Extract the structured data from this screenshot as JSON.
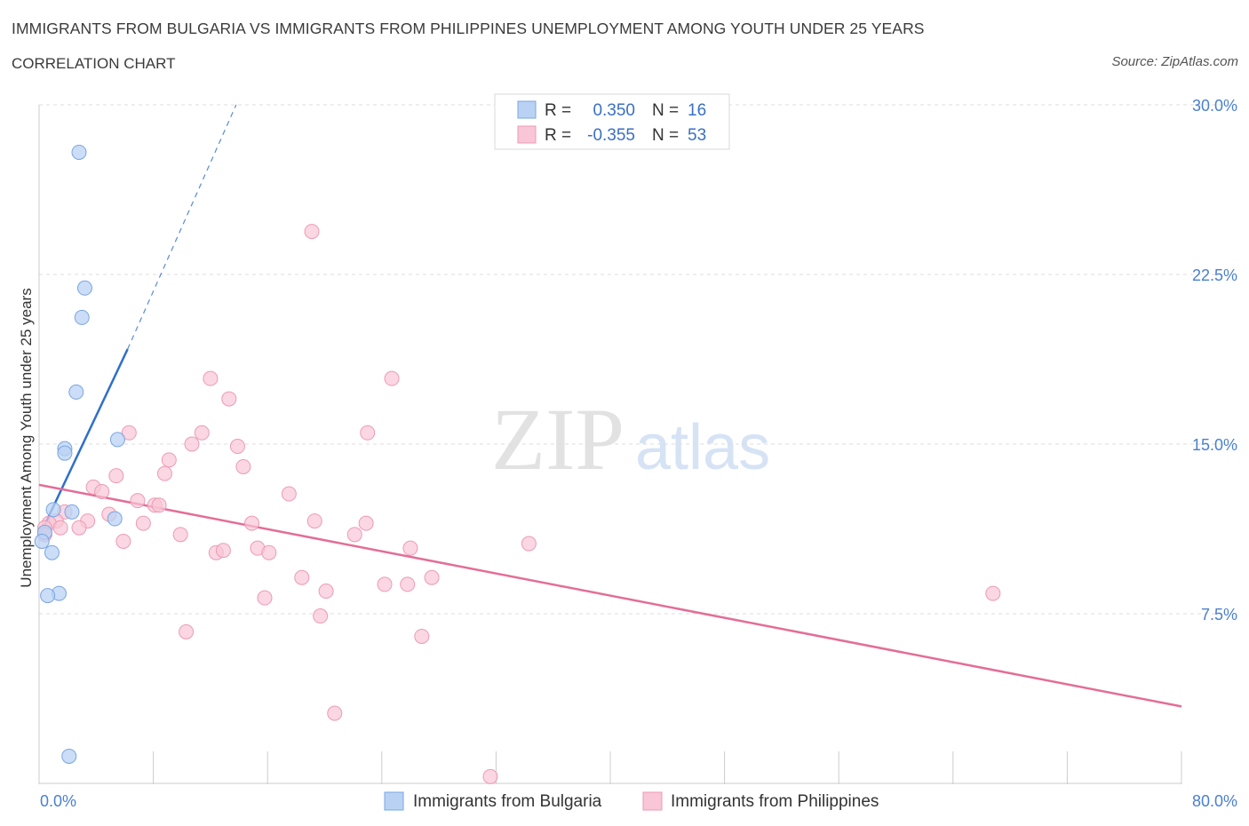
{
  "header": {
    "title": "IMMIGRANTS FROM BULGARIA VS IMMIGRANTS FROM PHILIPPINES UNEMPLOYMENT AMONG YOUTH UNDER 25 YEARS",
    "subtitle": "CORRELATION CHART",
    "source": "Source: ZipAtlas.com"
  },
  "watermark": {
    "zip": "ZIP",
    "atlas": "atlas"
  },
  "colors": {
    "bulgaria_fill": "#b9d2f4",
    "bulgaria_stroke": "#7aa5e0",
    "bulgaria_line": "#2f6fcc",
    "philippines_fill": "#f8c6d6",
    "philippines_stroke": "#ee9ab5",
    "philippines_line": "#e46d97",
    "axis_label": "#4a7fd0",
    "grid": "#dddddd"
  },
  "legend": {
    "rows": [
      {
        "r_label": "R =",
        "r_value": "0.350",
        "n_label": "N =",
        "n_value": "16"
      },
      {
        "r_label": "R =",
        "r_value": "-0.355",
        "n_label": "N =",
        "n_value": "53"
      }
    ]
  },
  "bottom_legend": [
    "Immigrants from Bulgaria",
    "Immigrants from Philippines"
  ],
  "chart_data": {
    "type": "scatter",
    "title": "IMMIGRANTS FROM BULGARIA VS IMMIGRANTS FROM PHILIPPINES UNEMPLOYMENT AMONG YOUTH UNDER 25 YEARS",
    "xlabel": "",
    "ylabel": "Unemployment Among Youth under 25 years",
    "xlim": [
      0,
      80
    ],
    "ylim": [
      0,
      30
    ],
    "x_tick_labels": [
      "0.0%",
      "80.0%"
    ],
    "y_ticks": [
      7.5,
      15.0,
      22.5,
      30.0
    ],
    "y_tick_labels": [
      "7.5%",
      "15.0%",
      "22.5%",
      "30.0%"
    ],
    "grid": true,
    "series": [
      {
        "name": "Immigrants from Bulgaria",
        "R": 0.35,
        "N": 16,
        "points": [
          [
            2.8,
            27.9
          ],
          [
            3.2,
            21.9
          ],
          [
            3.0,
            20.6
          ],
          [
            2.6,
            17.3
          ],
          [
            5.5,
            15.2
          ],
          [
            1.8,
            14.8
          ],
          [
            1.8,
            14.6
          ],
          [
            1.0,
            12.1
          ],
          [
            2.3,
            12.0
          ],
          [
            5.3,
            11.7
          ],
          [
            0.4,
            11.1
          ],
          [
            0.2,
            10.7
          ],
          [
            0.9,
            10.2
          ],
          [
            1.4,
            8.4
          ],
          [
            0.6,
            8.3
          ],
          [
            2.1,
            1.2
          ]
        ],
        "trend": {
          "x_start": 0,
          "y_start": 10.9,
          "x_solid_end": 6.2,
          "y_solid_end": 19.2,
          "x_dash_end": 13.8,
          "y_dash_end": 30.0
        }
      },
      {
        "name": "Immigrants from Philippines",
        "R": -0.355,
        "N": 53,
        "points": [
          [
            19.1,
            24.4
          ],
          [
            12.0,
            17.9
          ],
          [
            24.7,
            17.9
          ],
          [
            13.3,
            17.0
          ],
          [
            6.3,
            15.5
          ],
          [
            11.4,
            15.5
          ],
          [
            23.0,
            15.5
          ],
          [
            10.7,
            15.0
          ],
          [
            13.9,
            14.9
          ],
          [
            9.1,
            14.3
          ],
          [
            14.3,
            14.0
          ],
          [
            8.8,
            13.7
          ],
          [
            5.4,
            13.6
          ],
          [
            3.8,
            13.1
          ],
          [
            4.4,
            12.9
          ],
          [
            17.5,
            12.8
          ],
          [
            6.9,
            12.5
          ],
          [
            8.1,
            12.3
          ],
          [
            8.4,
            12.3
          ],
          [
            1.8,
            12.0
          ],
          [
            4.9,
            11.9
          ],
          [
            1.2,
            11.6
          ],
          [
            3.4,
            11.6
          ],
          [
            0.7,
            11.5
          ],
          [
            7.3,
            11.5
          ],
          [
            14.9,
            11.5
          ],
          [
            19.3,
            11.6
          ],
          [
            22.9,
            11.5
          ],
          [
            0.4,
            11.3
          ],
          [
            1.5,
            11.3
          ],
          [
            2.8,
            11.3
          ],
          [
            0.4,
            11.0
          ],
          [
            9.9,
            11.0
          ],
          [
            22.1,
            11.0
          ],
          [
            5.9,
            10.7
          ],
          [
            34.3,
            10.6
          ],
          [
            15.3,
            10.4
          ],
          [
            26.0,
            10.4
          ],
          [
            12.4,
            10.2
          ],
          [
            12.9,
            10.3
          ],
          [
            16.1,
            10.2
          ],
          [
            18.4,
            9.1
          ],
          [
            27.5,
            9.1
          ],
          [
            24.2,
            8.8
          ],
          [
            25.8,
            8.8
          ],
          [
            20.1,
            8.5
          ],
          [
            66.8,
            8.4
          ],
          [
            15.8,
            8.2
          ],
          [
            19.7,
            7.4
          ],
          [
            10.3,
            6.7
          ],
          [
            26.8,
            6.5
          ],
          [
            20.7,
            3.1
          ],
          [
            31.6,
            0.3
          ]
        ],
        "trend": {
          "x_start": 0,
          "y_start": 13.2,
          "x_end": 80,
          "y_end": 3.4
        }
      }
    ]
  }
}
